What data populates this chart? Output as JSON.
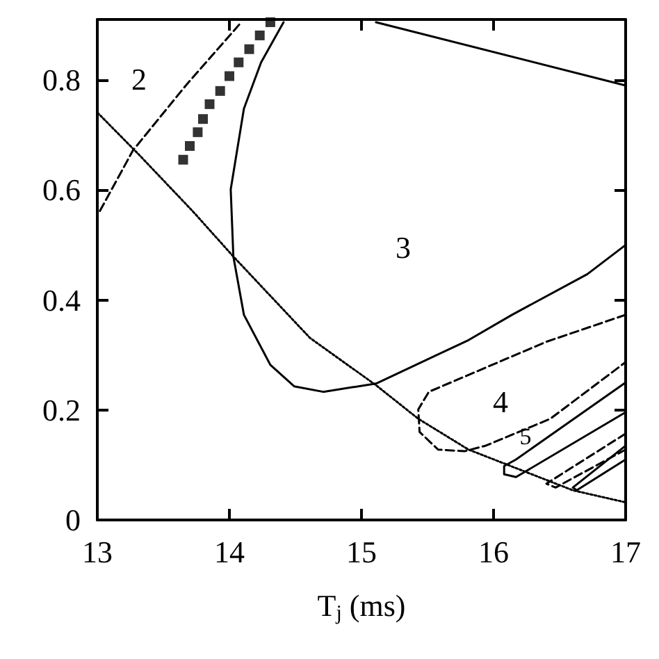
{
  "chart_data": {
    "type": "line",
    "xlabel": "T$_{j}$ (ms)",
    "xlim": [
      13,
      17
    ],
    "xticks": [
      13,
      14,
      15,
      16,
      17
    ],
    "ylim": [
      0,
      0.91
    ],
    "yticks": [
      0,
      0.2,
      0.4,
      0.6,
      0.8
    ],
    "grid": false,
    "series": [
      {
        "color": "#000000",
        "line_style": "dashed",
        "marker": "none",
        "x": [
          13.02,
          13.27,
          13.67,
          14.09
        ],
        "values": [
          0.562,
          0.672,
          0.79,
          0.905
        ]
      },
      {
        "type": "scatter",
        "color": "#000000",
        "marker": "square",
        "x": [
          13.65,
          13.7,
          13.76,
          13.8,
          13.85,
          13.93,
          14.0,
          14.07,
          14.15,
          14.23,
          14.31
        ],
        "values": [
          0.655,
          0.68,
          0.705,
          0.729,
          0.756,
          0.78,
          0.807,
          0.832,
          0.856,
          0.881,
          0.905
        ]
      },
      {
        "color": "#000000",
        "line_style": "solid",
        "marker": "none",
        "x": [
          17.0,
          15.11,
          15.0,
          14.41,
          14.24,
          14.11,
          14.01,
          14.03,
          14.11,
          14.31,
          14.49,
          14.71,
          15.11,
          15.81,
          16.14,
          16.71,
          17.0
        ],
        "values": [
          0.79,
          0.905,
          null,
          0.905,
          0.832,
          0.748,
          0.601,
          0.479,
          0.373,
          0.282,
          0.243,
          0.233,
          0.248,
          0.327,
          0.373,
          0.447,
          0.5
        ]
      },
      {
        "color": "#000000",
        "line_style": "dashed",
        "marker": "none",
        "x": [
          17.0,
          16.4,
          15.51,
          15.43,
          15.44,
          15.58,
          15.78,
          15.94,
          16.43,
          17.0
        ],
        "values": [
          0.373,
          0.324,
          0.233,
          0.201,
          0.16,
          0.128,
          0.125,
          0.135,
          0.184,
          0.287
        ]
      },
      {
        "color": "#000000",
        "line_style": "solid",
        "marker": "none",
        "x": [
          17.0,
          16.17,
          16.08,
          16.08,
          16.17,
          17.0
        ],
        "values": [
          0.25,
          0.11,
          0.098,
          0.083,
          0.078,
          0.196
        ]
      },
      {
        "color": "#000000",
        "line_style": "dashed",
        "marker": "none",
        "x": [
          17.0,
          16.4,
          16.47,
          17.0
        ],
        "values": [
          0.157,
          0.066,
          0.059,
          0.128
        ]
      },
      {
        "color": "#000000",
        "line_style": "solid",
        "marker": "none",
        "x": [
          17.0,
          16.6,
          16.63,
          17.0
        ],
        "values": [
          0.135,
          0.059,
          0.054,
          0.11
        ]
      },
      {
        "color": "#000000",
        "line_style": "dotted",
        "marker": "none",
        "x": [
          13.0,
          13.32,
          13.72,
          14.03,
          14.61,
          15.11,
          15.43,
          15.81,
          16.6,
          17.0
        ],
        "values": [
          0.741,
          0.663,
          0.562,
          0.479,
          0.331,
          0.245,
          0.184,
          0.128,
          0.054,
          0.032
        ]
      }
    ],
    "annotations": [
      "2",
      "3",
      "4",
      "5"
    ]
  }
}
